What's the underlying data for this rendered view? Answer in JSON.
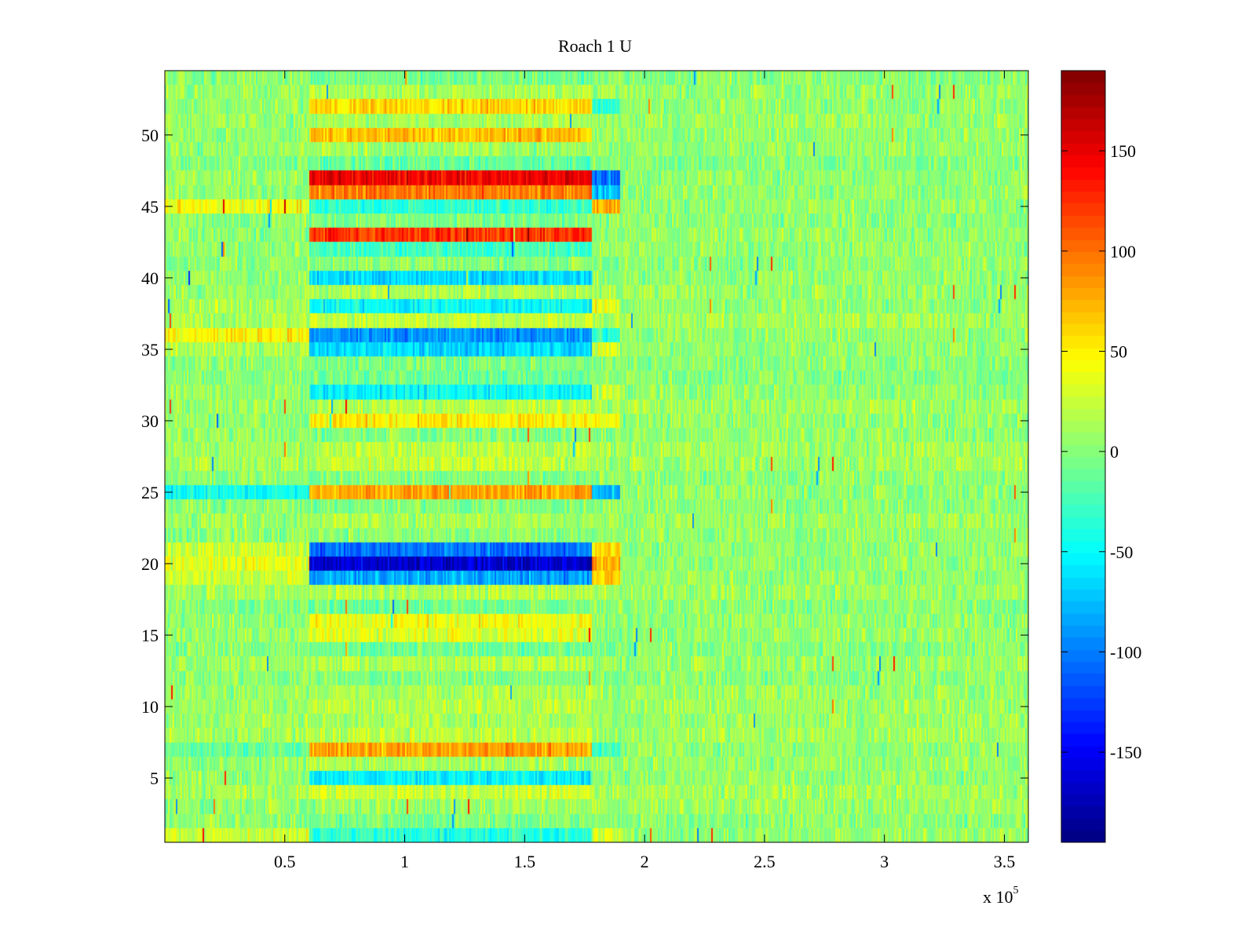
{
  "chart_data": {
    "type": "heatmap",
    "title": "Roach 1 U",
    "xlabel": "",
    "ylabel": "",
    "x_exponent_label": {
      "base": "x 10",
      "exponent": "5"
    },
    "xlim": [
      0,
      3.6
    ],
    "ylim": [
      0.5,
      54.5
    ],
    "x_ticks": [
      0.5,
      1,
      1.5,
      2,
      2.5,
      3,
      3.5
    ],
    "x_tick_labels": [
      "0.5",
      "1",
      "1.5",
      "2",
      "2.5",
      "3",
      "3.5"
    ],
    "y_ticks": [
      5,
      10,
      15,
      20,
      25,
      30,
      35,
      40,
      45,
      50
    ],
    "y_tick_labels": [
      "5",
      "10",
      "15",
      "20",
      "25",
      "30",
      "35",
      "40",
      "45",
      "50"
    ],
    "rows": 54,
    "colorbar": {
      "colormap": "jet",
      "clim": [
        -195,
        190
      ],
      "ticks": [
        150,
        100,
        50,
        0,
        -50,
        -100,
        -150
      ],
      "tick_labels": [
        "150",
        "100",
        "50",
        "0",
        "-50",
        "-100",
        "-150"
      ]
    },
    "segments_x": [
      0.6,
      1.78,
      1.9
    ],
    "row_levels": [
      {
        "row": 47,
        "levels": [
          0,
          140,
          -110,
          0
        ]
      },
      {
        "row": 46,
        "levels": [
          0,
          90,
          -80,
          0
        ]
      },
      {
        "row": 43,
        "levels": [
          0,
          120,
          0,
          0
        ]
      },
      {
        "row": 52,
        "levels": [
          0,
          55,
          -40,
          0
        ]
      },
      {
        "row": 50,
        "levels": [
          0,
          65,
          0,
          0
        ]
      },
      {
        "row": 45,
        "levels": [
          40,
          -40,
          70,
          0
        ]
      },
      {
        "row": 42,
        "levels": [
          0,
          -30,
          0,
          0
        ]
      },
      {
        "row": 40,
        "levels": [
          0,
          -70,
          0,
          0
        ]
      },
      {
        "row": 38,
        "levels": [
          10,
          -55,
          30,
          0
        ]
      },
      {
        "row": 36,
        "levels": [
          45,
          -95,
          -40,
          0
        ]
      },
      {
        "row": 35,
        "levels": [
          10,
          -70,
          30,
          0
        ]
      },
      {
        "row": 32,
        "levels": [
          0,
          -55,
          20,
          0
        ]
      },
      {
        "row": 30,
        "levels": [
          0,
          45,
          40,
          0
        ]
      },
      {
        "row": 25,
        "levels": [
          -50,
          75,
          -80,
          0
        ]
      },
      {
        "row": 21,
        "levels": [
          20,
          -110,
          50,
          0
        ]
      },
      {
        "row": 20,
        "levels": [
          30,
          -170,
          70,
          0
        ]
      },
      {
        "row": 19,
        "levels": [
          20,
          -90,
          60,
          0
        ]
      },
      {
        "row": 16,
        "levels": [
          0,
          35,
          0,
          0
        ]
      },
      {
        "row": 15,
        "levels": [
          0,
          30,
          0,
          0
        ]
      },
      {
        "row": 7,
        "levels": [
          -20,
          75,
          -30,
          0
        ]
      },
      {
        "row": 5,
        "levels": [
          0,
          -60,
          0,
          0
        ]
      },
      {
        "row": 1,
        "levels": [
          20,
          -40,
          30,
          0
        ]
      }
    ]
  }
}
